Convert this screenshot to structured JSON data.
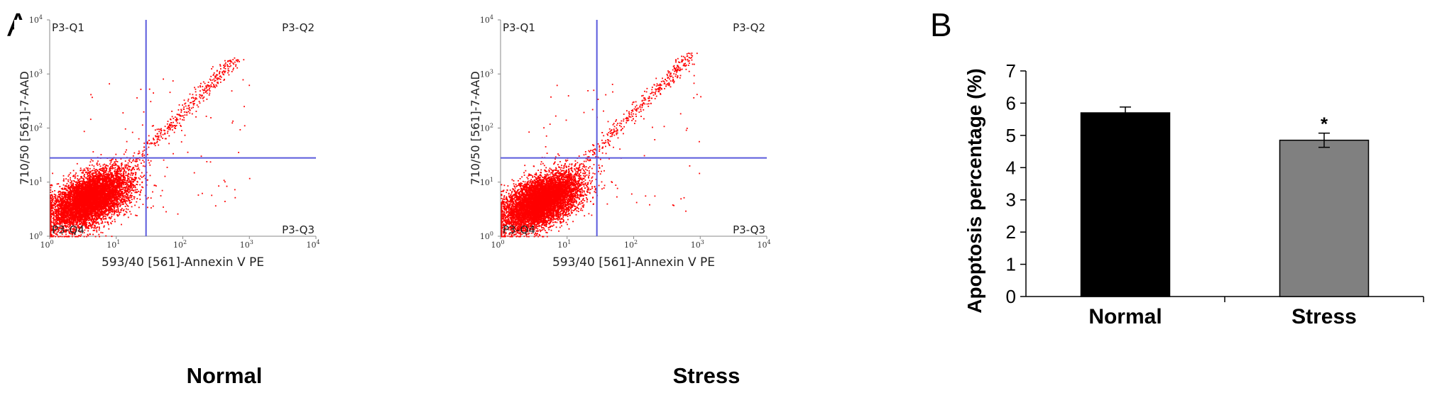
{
  "figure": {
    "panel_a_label": "A",
    "panel_b_label": "B",
    "flow_panels": [
      {
        "condition": "Normal",
        "y_axis_label": "710/50 [561]-7-AAD",
        "x_axis_label": "593/40 [561]-Annexin V PE",
        "quadrant_labels": {
          "q1": "P3-Q1",
          "q2": "P3-Q2",
          "q3": "P3-Q3",
          "q4": "P3-Q4"
        },
        "tick_labels": [
          {
            "base": "10",
            "exp": "0"
          },
          {
            "base": "10",
            "exp": "1"
          },
          {
            "base": "10",
            "exp": "2"
          },
          {
            "base": "10",
            "exp": "3"
          },
          {
            "base": "10",
            "exp": "4"
          }
        ],
        "gate": {
          "x": 28,
          "y": 28
        }
      },
      {
        "condition": "Stress",
        "y_axis_label": "710/50 [561]-7-AAD",
        "x_axis_label": "593/40 [561]-Annexin V PE",
        "quadrant_labels": {
          "q1": "P3-Q1",
          "q2": "P3-Q2",
          "q3": "P3-Q3",
          "q4": "P3-Q4"
        },
        "tick_labels": [
          {
            "base": "10",
            "exp": "0"
          },
          {
            "base": "10",
            "exp": "1"
          },
          {
            "base": "10",
            "exp": "2"
          },
          {
            "base": "10",
            "exp": "3"
          },
          {
            "base": "10",
            "exp": "4"
          }
        ],
        "gate": {
          "x": 28,
          "y": 28
        }
      }
    ]
  },
  "colors": {
    "dots": "#ff0000",
    "gate_lines": "#5a5adc",
    "normal_bar": "#000000",
    "stress_bar": "#808080"
  },
  "chart_data": [
    {
      "type": "scatter",
      "chart_title": "Normal",
      "xlabel": "593/40 [561]-Annexin V PE",
      "ylabel": "710/50 [561]-7-AAD",
      "xscale": "log",
      "yscale": "log",
      "xlim": [
        1,
        10000
      ],
      "ylim": [
        1,
        10000
      ],
      "gates": {
        "x": 28,
        "y": 28
      },
      "populations": [
        {
          "kind": "cluster",
          "center": [
            4,
            5
          ],
          "spread_decades": 0.35,
          "approx_fraction": 0.94
        },
        {
          "kind": "diagonal",
          "from": [
            10,
            12
          ],
          "to": [
            600,
            1900
          ],
          "approx_fraction": 0.05
        },
        {
          "kind": "scattered",
          "approx_fraction": 0.01
        }
      ]
    },
    {
      "type": "scatter",
      "chart_title": "Stress",
      "xlabel": "593/40 [561]-Annexin V PE",
      "ylabel": "710/50 [561]-7-AAD",
      "xscale": "log",
      "yscale": "log",
      "xlim": [
        1,
        10000
      ],
      "ylim": [
        1,
        10000
      ],
      "gates": {
        "x": 28,
        "y": 28
      },
      "populations": [
        {
          "kind": "cluster",
          "center": [
            4,
            4.5
          ],
          "spread_decades": 0.35,
          "approx_fraction": 0.94
        },
        {
          "kind": "diagonal",
          "from": [
            10,
            12
          ],
          "to": [
            750,
            2400
          ],
          "approx_fraction": 0.05
        },
        {
          "kind": "scattered",
          "approx_fraction": 0.01
        }
      ]
    },
    {
      "type": "bar",
      "categories": [
        "Normal",
        "Stress"
      ],
      "values": [
        5.7,
        4.85
      ],
      "errors": [
        0.18,
        0.22
      ],
      "significance": [
        "",
        "*"
      ],
      "ylabel": "Apoptosis percentage (%)",
      "xlabel": "",
      "ylim": [
        0,
        7
      ],
      "yticks": [
        "0",
        "1",
        "2",
        "3",
        "4",
        "5",
        "6",
        "7"
      ]
    }
  ]
}
